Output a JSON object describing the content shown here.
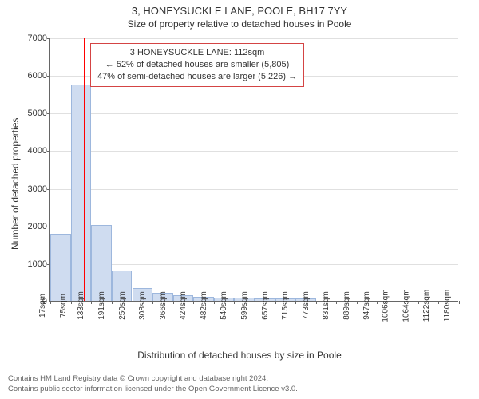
{
  "header": {
    "address": "3, HONEYSUCKLE LANE, POOLE, BH17 7YY",
    "subtitle": "Size of property relative to detached houses in Poole"
  },
  "chart": {
    "type": "histogram",
    "y_axis_title": "Number of detached properties",
    "x_axis_title": "Distribution of detached houses by size in Poole",
    "ylim": [
      0,
      7000
    ],
    "ytick_step": 1000,
    "yticks": [
      0,
      1000,
      2000,
      3000,
      4000,
      5000,
      6000,
      7000
    ],
    "xticks": [
      "17sqm",
      "75sqm",
      "133sqm",
      "191sqm",
      "250sqm",
      "308sqm",
      "366sqm",
      "424sqm",
      "482sqm",
      "540sqm",
      "599sqm",
      "657sqm",
      "715sqm",
      "773sqm",
      "831sqm",
      "889sqm",
      "947sqm",
      "1006sqm",
      "1064sqm",
      "1122sqm",
      "1180sqm"
    ],
    "bar_color": "#cfdcf0",
    "bar_border": "#9db7dd",
    "grid_color": "#e0e0e0",
    "axis_color": "#666666",
    "background_color": "#ffffff",
    "marker": {
      "color": "#ff0000",
      "value_sqm": 112
    },
    "bars": [
      {
        "x": 17,
        "count": 1780
      },
      {
        "x": 75,
        "count": 5750
      },
      {
        "x": 133,
        "count": 2020
      },
      {
        "x": 191,
        "count": 800
      },
      {
        "x": 250,
        "count": 350
      },
      {
        "x": 308,
        "count": 210
      },
      {
        "x": 366,
        "count": 150
      },
      {
        "x": 424,
        "count": 110
      },
      {
        "x": 482,
        "count": 90
      },
      {
        "x": 540,
        "count": 80
      },
      {
        "x": 599,
        "count": 70
      },
      {
        "x": 657,
        "count": 65
      },
      {
        "x": 715,
        "count": 60
      },
      {
        "x": 773,
        "count": 0
      },
      {
        "x": 831,
        "count": 0
      },
      {
        "x": 889,
        "count": 0
      },
      {
        "x": 947,
        "count": 0
      },
      {
        "x": 1006,
        "count": 0
      },
      {
        "x": 1064,
        "count": 0
      },
      {
        "x": 1122,
        "count": 0
      }
    ],
    "x_range": [
      17,
      1180
    ],
    "bar_width_sqm": 58
  },
  "info_box": {
    "border_color": "#d44444",
    "line1": "3 HONEYSUCKLE LANE: 112sqm",
    "line2": "← 52% of detached houses are smaller (5,805)",
    "line3": "47% of semi-detached houses are larger (5,226) →"
  },
  "footer": {
    "line1": "Contains HM Land Registry data © Crown copyright and database right 2024.",
    "line2": "Contains public sector information licensed under the Open Government Licence v3.0."
  }
}
